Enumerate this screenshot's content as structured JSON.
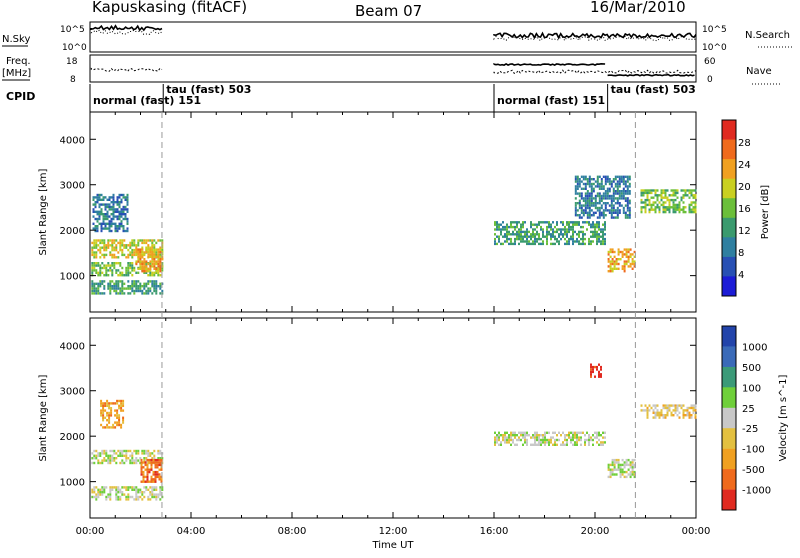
{
  "header": {
    "station": "Kapuskasing (fitACF)",
    "beam": "Beam 07",
    "date": "16/Mar/2010"
  },
  "strips": {
    "nsky": {
      "label": "N.Sky",
      "ticks": [
        "10^5",
        "10^0"
      ]
    },
    "nsearch": {
      "label": "N.Search",
      "ticks": [
        "10^5",
        "10^0"
      ]
    },
    "freq": {
      "label1": "Freq.",
      "label2": "[MHz]",
      "ticks": [
        "18",
        "8"
      ]
    },
    "nave": {
      "label": "Nave",
      "ticks": [
        "60",
        "0"
      ]
    },
    "cpid": {
      "label": "CPID"
    }
  },
  "colors": {
    "power": [
      "#1c1cd6",
      "#2850b4",
      "#2f7fa0",
      "#3a9a6e",
      "#6bbf3a",
      "#c9cf20",
      "#f0a020",
      "#ef6a1c",
      "#e02a20"
    ],
    "velocity": [
      "#2244aa",
      "#3a6ab8",
      "#3b9a78",
      "#6fcf3a",
      "#c8c8c8",
      "#e3c040",
      "#f0a020",
      "#ef6a1c",
      "#e02a20"
    ]
  },
  "chart_data": {
    "type": "heatmap",
    "xlabel": "Time UT",
    "x_ticks": [
      "00:00",
      "04:00",
      "08:00",
      "12:00",
      "16:00",
      "20:00",
      "00:00"
    ],
    "xlim": [
      0,
      24
    ],
    "cpid_segments": [
      {
        "start": 0.0,
        "end": 2.9,
        "label": "normal (fast) 151"
      },
      {
        "start": 2.9,
        "end": 16.0,
        "label": "tau (fast) 503"
      },
      {
        "start": 16.0,
        "end": 21.7,
        "label": "normal (fast) 151"
      },
      {
        "start": 20.5,
        "end": 21.7,
        "label": "tau (fast) 503"
      }
    ],
    "panels": [
      {
        "name": "power",
        "ylabel": "Slant Range [km]",
        "ylim": [
          200,
          4600
        ],
        "y_ticks": [
          "1000",
          "2000",
          "3000",
          "4000"
        ],
        "colorbar_label": "Power [dB]",
        "colorbar_ticks": [
          "28",
          "24",
          "20",
          "16",
          "12",
          "8",
          "4"
        ],
        "echo_regions": [
          {
            "t0": 0.05,
            "t1": 2.85,
            "r0": 600,
            "r1": 900,
            "level": 3
          },
          {
            "t0": 0.05,
            "t1": 2.85,
            "r0": 1000,
            "r1": 1300,
            "level": 4
          },
          {
            "t0": 0.05,
            "t1": 2.85,
            "r0": 1400,
            "r1": 1800,
            "level": 5
          },
          {
            "t0": 1.8,
            "t1": 2.85,
            "r0": 1100,
            "r1": 1600,
            "level": 6
          },
          {
            "t0": 0.1,
            "t1": 1.5,
            "r0": 2000,
            "r1": 2800,
            "level": 2
          },
          {
            "t0": 16.0,
            "t1": 20.4,
            "r0": 1700,
            "r1": 2200,
            "level": 3
          },
          {
            "t0": 20.5,
            "t1": 21.6,
            "r0": 1100,
            "r1": 1600,
            "level": 6
          },
          {
            "t0": 21.8,
            "t1": 24.0,
            "r0": 2400,
            "r1": 2900,
            "level": 4
          },
          {
            "t0": 19.2,
            "t1": 21.4,
            "r0": 2300,
            "r1": 3200,
            "level": 2
          }
        ]
      },
      {
        "name": "velocity",
        "ylabel": "Slant Range [km]",
        "ylim": [
          200,
          4600
        ],
        "y_ticks": [
          "1000",
          "2000",
          "3000",
          "4000"
        ],
        "colorbar_label": "Velocity [m s^-1]",
        "colorbar_ticks": [
          "1000",
          "500",
          "100",
          "25",
          "-25",
          "-100",
          "-500",
          "-1000"
        ],
        "echo_regions": [
          {
            "t0": 0.05,
            "t1": 2.85,
            "r0": 600,
            "r1": 900,
            "level": 4
          },
          {
            "t0": 0.05,
            "t1": 2.85,
            "r0": 1400,
            "r1": 1700,
            "level": 4
          },
          {
            "t0": 2.0,
            "t1": 2.85,
            "r0": 1000,
            "r1": 1500,
            "level": 7
          },
          {
            "t0": 0.4,
            "t1": 1.3,
            "r0": 2200,
            "r1": 2800,
            "level": 6
          },
          {
            "t0": 16.0,
            "t1": 20.4,
            "r0": 1800,
            "r1": 2100,
            "level": 4
          },
          {
            "t0": 20.5,
            "t1": 21.6,
            "r0": 1100,
            "r1": 1500,
            "level": 4
          },
          {
            "t0": 21.8,
            "t1": 24.0,
            "r0": 2400,
            "r1": 2700,
            "level": 5
          },
          {
            "t0": 19.8,
            "t1": 20.2,
            "r0": 3300,
            "r1": 3600,
            "level": 8
          }
        ]
      }
    ]
  }
}
